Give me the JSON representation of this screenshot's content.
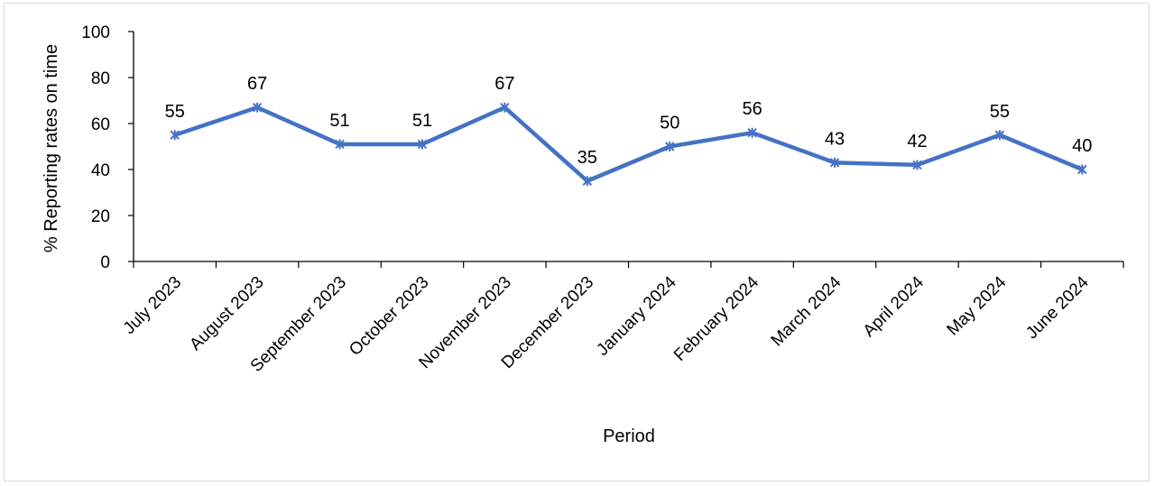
{
  "chart_data": {
    "type": "line",
    "categories": [
      "July 2023",
      "August 2023",
      "September 2023",
      "October 2023",
      "November 2023",
      "December 2023",
      "January 2024",
      "February 2024",
      "March 2024",
      "April 2024",
      "May 2024",
      "June 2024"
    ],
    "series": [
      {
        "values": [
          55,
          67,
          51,
          51,
          67,
          35,
          50,
          56,
          43,
          42,
          55,
          40
        ],
        "color": "#4472c4",
        "marker": "star"
      }
    ],
    "data_labels": [
      "55",
      "67",
      "51",
      "51",
      "67",
      "35",
      "50",
      "56",
      "43",
      "42",
      "55",
      "40"
    ],
    "xlabel": "Period",
    "ylabel": "% Reporting rates on time",
    "ylim": [
      0,
      100
    ],
    "yticks": [
      0,
      20,
      40,
      60,
      80,
      100
    ],
    "ytick_labels": [
      "0",
      "20",
      "40",
      "60",
      "80",
      "100"
    ],
    "grid": false,
    "legend": "none"
  }
}
